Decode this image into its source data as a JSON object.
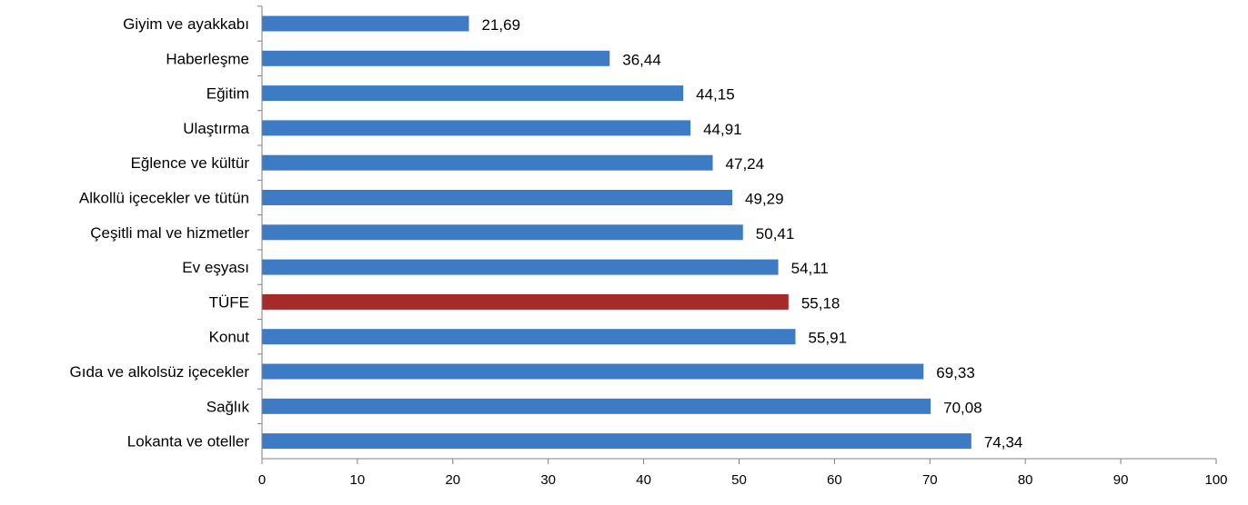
{
  "chart_data": {
    "type": "bar",
    "orientation": "horizontal",
    "categories": [
      "Giyim ve ayakkabı",
      "Haberleşme",
      "Eğitim",
      "Ulaştırma",
      "Eğlence ve kültür",
      "Alkollü içecekler ve tütün",
      "Çeşitli mal ve hizmetler",
      "Ev eşyası",
      "TÜFE",
      "Konut",
      "Gıda ve alkolsüz içecekler",
      "Sağlık",
      "Lokanta ve oteller"
    ],
    "values": [
      21.69,
      36.44,
      44.15,
      44.91,
      47.24,
      49.29,
      50.41,
      54.11,
      55.18,
      55.91,
      69.33,
      70.08,
      74.34
    ],
    "value_labels": [
      "21,69",
      "36,44",
      "44,15",
      "44,91",
      "47,24",
      "49,29",
      "50,41",
      "54,11",
      "55,18",
      "55,91",
      "69,33",
      "70,08",
      "74,34"
    ],
    "highlight_category": "TÜFE",
    "xlim": [
      0,
      100
    ],
    "xticks": [
      0,
      10,
      20,
      30,
      40,
      50,
      60,
      70,
      80,
      90,
      100
    ],
    "grid": false,
    "legend": "none",
    "title": "",
    "xlabel": "",
    "ylabel": ""
  },
  "colors": {
    "bar": "#3d7cc4",
    "highlight": "#a52a2a",
    "axis": "#808080"
  }
}
